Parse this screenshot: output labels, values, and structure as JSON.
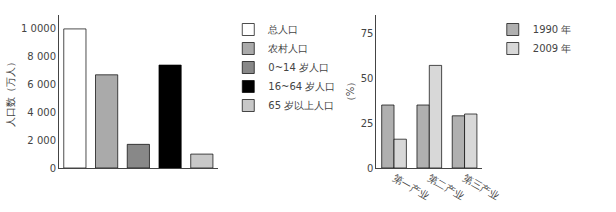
{
  "chart_data": [
    {
      "type": "bar",
      "ylabel": "人口数（万人）",
      "categories": [
        "总人口",
        "农村人口",
        "0~14 岁人口",
        "16~64 岁人口",
        "65 岁以上人口"
      ],
      "values": [
        10000,
        6700,
        1700,
        7400,
        1000
      ],
      "colors": [
        "white",
        "#aaaaaa",
        "#888888",
        "#000000",
        "#c8c8c8"
      ],
      "ylim": [
        0,
        11000
      ],
      "yticks": [
        0,
        {
          "value": 2000,
          "label": "2 000"
        },
        {
          "value": 4000,
          "label": "4 000"
        },
        {
          "value": 6000,
          "label": "6 000"
        },
        {
          "value": 8000,
          "label": "8 000"
        },
        {
          "value": 10000,
          "label": "1 0000"
        }
      ],
      "grid": false,
      "legend": "right",
      "tick_labels": "y"
    },
    {
      "type": "bar",
      "ylabel": "（%）",
      "categories": [
        "第一产业",
        "第二产业",
        "第三产业"
      ],
      "series": [
        {
          "name": "1990 年",
          "color": "#b0b0b0",
          "values": [
            35,
            35,
            29
          ]
        },
        {
          "name": "2009 年",
          "color": "#d8d8d8",
          "values": [
            16,
            57,
            30
          ]
        }
      ],
      "ylim": [
        0,
        85
      ],
      "yticks": [
        0,
        25,
        50,
        75
      ],
      "grid": false,
      "legend": "right"
    }
  ]
}
